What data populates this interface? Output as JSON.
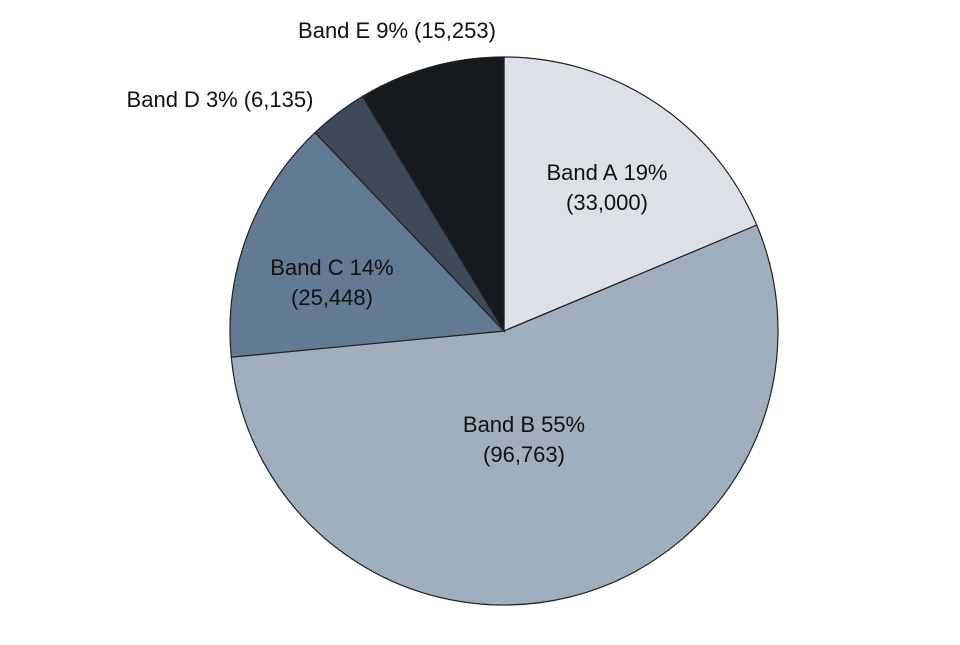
{
  "chart_data": {
    "type": "pie",
    "categories": [
      "Band A",
      "Band B",
      "Band C",
      "Band D",
      "Band E"
    ],
    "values": [
      33000,
      96763,
      25448,
      6135,
      15253
    ],
    "value_labels": [
      "(33,000)",
      "(96,763)",
      "(25,448)",
      "(6,135)",
      "(15,253)"
    ],
    "percentages": [
      19,
      55,
      14,
      3,
      9
    ],
    "percentage_labels": [
      "19%",
      "55%",
      "14%",
      "3%",
      "9%"
    ],
    "colors": [
      "#dde1e7",
      "#a0afbe",
      "#627b93",
      "#3c4a59",
      "#161a1f"
    ],
    "start_angle": 90,
    "direction": "clockwise"
  }
}
